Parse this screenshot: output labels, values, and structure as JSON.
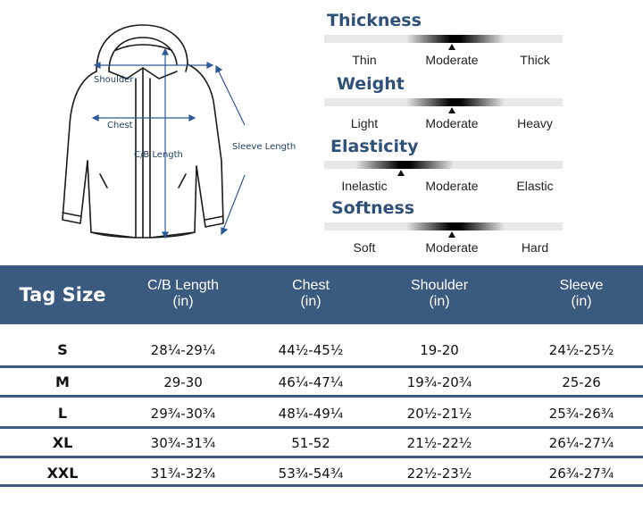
{
  "measurements": {
    "shoulder": "Shoulder",
    "chest": "Chest",
    "cb_length": "C/B Length",
    "sleeve_length": "Sleeve Length"
  },
  "attributes": [
    {
      "title": "Thickness",
      "options": [
        "Thin",
        "Moderate",
        "Thick"
      ],
      "selected": "Moderate"
    },
    {
      "title": "Weight",
      "options": [
        "Light",
        "Moderate",
        "Heavy"
      ],
      "selected": "Moderate"
    },
    {
      "title": "Elasticity",
      "options": [
        "Inelastic",
        "Moderate",
        "Elastic"
      ],
      "selected": "Inelastic"
    },
    {
      "title": "Softness",
      "options": [
        "Soft",
        "Moderate",
        "Hard"
      ],
      "selected": "Moderate"
    }
  ],
  "table": {
    "tag_header": "Tag Size",
    "columns": [
      {
        "name": "C/B Length",
        "unit": "(in)"
      },
      {
        "name": "Chest",
        "unit": "(in)"
      },
      {
        "name": "Shoulder",
        "unit": "(in)"
      },
      {
        "name": "Sleeve",
        "unit": "(in)"
      }
    ],
    "rows": [
      {
        "size": "S",
        "values": [
          "28¼-29¼",
          "44½-45½",
          "19-20",
          "24½-25½"
        ]
      },
      {
        "size": "M",
        "values": [
          "29-30",
          "46¼-47¼",
          "19¾-20¾",
          "25-26"
        ]
      },
      {
        "size": "L",
        "values": [
          "29¾-30¾",
          "48¼-49¼",
          "20½-21½",
          "25¾-26¾"
        ]
      },
      {
        "size": "XL",
        "values": [
          "30¾-31¾",
          "51-52",
          "21½-22½",
          "26¼-27¼"
        ]
      },
      {
        "size": "XXL",
        "values": [
          "31¾-32¾",
          "53¾-54¾",
          "22½-23½",
          "26¾-27¾"
        ]
      }
    ]
  },
  "colors": {
    "header_bg": "#3b5a80",
    "title_text": "#2f5078",
    "measure_line": "#2e5a9c"
  }
}
